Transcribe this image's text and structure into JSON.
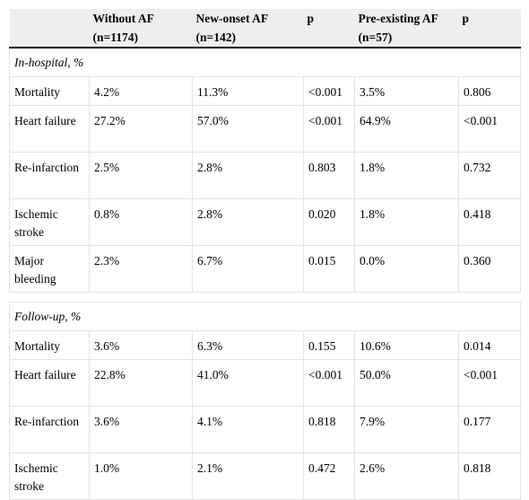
{
  "table": {
    "headers": [
      "",
      "Without AF\n(n=1174)",
      "New-onset AF\n(n=142)",
      "p",
      "Pre-existing AF\n(n=57)",
      "p"
    ],
    "header_lines": [
      [
        "",
        ""
      ],
      [
        "Without AF",
        "(n=1174)"
      ],
      [
        "New-onset AF",
        "(n=142)"
      ],
      [
        "p",
        ""
      ],
      [
        "Pre-existing AF",
        "(n=57)"
      ],
      [
        "p",
        ""
      ]
    ],
    "sections": [
      {
        "title": "In-hospital, %",
        "rows": [
          {
            "label": " Mortality",
            "values": [
              "4.2%",
              "11.3%",
              "<0.001",
              "3.5%",
              "0.806"
            ]
          },
          {
            "label": " Heart failure",
            "values": [
              "27.2%",
              "57.0%",
              "<0.001",
              "64.9%",
              "<0.001"
            ]
          },
          {
            "label": " Re-infarction",
            "values": [
              "2.5%",
              "2.8%",
              "0.803",
              "1.8%",
              "0.732"
            ]
          },
          {
            "label": " Ischemic stroke",
            "values": [
              "0.8%",
              "2.8%",
              "0.020",
              "1.8%",
              "0.418"
            ]
          },
          {
            "label": " Major bleeding",
            "values": [
              "2.3%",
              "6.7%",
              "0.015",
              "0.0%",
              "0.360"
            ]
          }
        ]
      },
      {
        "title": "Follow-up, %",
        "rows": [
          {
            "label": " Mortality",
            "values": [
              "3.6%",
              "6.3%",
              "0.155",
              "10.6%",
              "0.014"
            ]
          },
          {
            "label": " Heart failure",
            "values": [
              "22.8%",
              "41.0%",
              "<0.001",
              "50.0%",
              "<0.001"
            ]
          },
          {
            "label": " Re-infarction",
            "values": [
              "3.6%",
              "4.1%",
              "0.818",
              "7.9%",
              "0.177"
            ]
          },
          {
            "label": " Ischemic stroke",
            "values": [
              "1.0%",
              "2.1%",
              "0.472",
              "2.6%",
              "0.818"
            ]
          }
        ]
      }
    ]
  }
}
